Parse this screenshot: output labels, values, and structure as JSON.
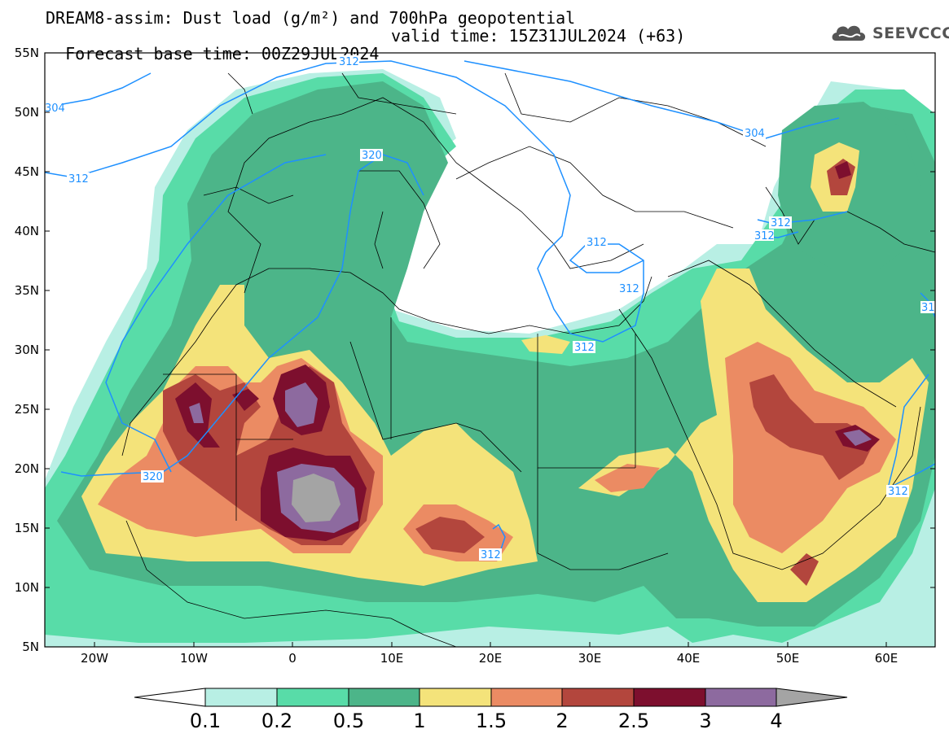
{
  "header": {
    "title": "DREAM8-assim: Dust load (g/m²) and 700hPa geopotential",
    "base_time": "Forecast base time: 00Z29JUL2024",
    "valid_time": "valid time: 15Z31JUL2024 (+63)"
  },
  "logo": {
    "text": "SEEVCCC",
    "icon": "cloud-logo-icon"
  },
  "axes": {
    "lat_ticks": [
      "55N",
      "50N",
      "45N",
      "40N",
      "35N",
      "30N",
      "25N",
      "20N",
      "15N",
      "10N",
      "5N"
    ],
    "lon_ticks": [
      "20W",
      "10W",
      "0",
      "10E",
      "20E",
      "30E",
      "40E",
      "50E",
      "60E"
    ]
  },
  "contour_labels": [
    "312",
    "304",
    "320",
    "312",
    "304",
    "312",
    "312",
    "312",
    "312",
    "312",
    "320",
    "312",
    "312",
    "31"
  ],
  "colorbar": {
    "labels": [
      "0.1",
      "0.2",
      "0.5",
      "1",
      "1.5",
      "2",
      "2.5",
      "3",
      "4"
    ],
    "colors": [
      "#b8efe4",
      "#58dca8",
      "#4cb589",
      "#f4e37a",
      "#eb8b63",
      "#b3463d",
      "#7d0f2e",
      "#8d6a9f",
      "#a4a4a4"
    ]
  },
  "colors": {
    "contour": "#1e90ff",
    "border": "#000000"
  }
}
